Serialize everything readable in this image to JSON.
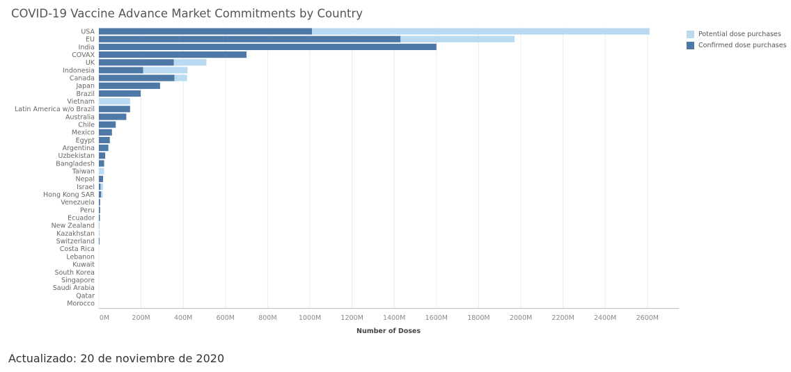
{
  "title": "COVID-19 Vaccine Advance Market Commitments by Country",
  "footnote": "Actualizado: 20 de noviembre de 2020",
  "colors": {
    "potential": "#b9daf0",
    "confirmed": "#4e79a7",
    "grid": "#ececec",
    "axis": "#bbbbbb"
  },
  "legend": [
    {
      "label": "Potential dose purchases",
      "color": "#b9daf0"
    },
    {
      "label": "Confirmed dose purchases",
      "color": "#4e79a7"
    }
  ],
  "chart_data": {
    "type": "bar",
    "orientation": "horizontal",
    "stacked": true,
    "xlabel": "Number of Doses",
    "xlim": [
      0,
      2700
    ],
    "xticks": [
      0,
      200,
      400,
      600,
      800,
      1000,
      1200,
      1400,
      1600,
      1800,
      2000,
      2200,
      2400,
      2600
    ],
    "xtick_labels": [
      "0M",
      "200M",
      "400M",
      "600M",
      "800M",
      "1000M",
      "1200M",
      "1400M",
      "1600M",
      "1800M",
      "2000M",
      "2200M",
      "2400M",
      "2600M"
    ],
    "legend_position": "top-right",
    "grid": true,
    "categories": [
      "USA",
      "EU",
      "India",
      "COVAX",
      "UK",
      "Indonesia",
      "Canada",
      "Japan",
      "Brazil",
      "Vietnam",
      "Latin America w/o Brazil",
      "Australia",
      "Chile",
      "Mexico",
      "Egypt",
      "Argentina",
      "Uzbekistan",
      "Bangladesh",
      "Taiwan",
      "Nepal",
      "Israel",
      "Hong Kong SAR",
      "Venezuela",
      "Peru",
      "Ecuador",
      "New Zealand",
      "Kazakhstan",
      "Switzerland",
      "Costa Rica",
      "Lebanon",
      "Kuwait",
      "South Korea",
      "Singapore",
      "Saudi Arabia",
      "Qatar",
      "Morocco"
    ],
    "series": [
      {
        "name": "Confirmed dose purchases",
        "values": [
          1010,
          1430,
          1600,
          700,
          355,
          210,
          358,
          290,
          198,
          0,
          148,
          130,
          80,
          62,
          52,
          45,
          30,
          25,
          0,
          20,
          8,
          10,
          6,
          6,
          5,
          1,
          0,
          3,
          0,
          0,
          0,
          0,
          0,
          0,
          0,
          0
        ]
      },
      {
        "name": "Potential dose purchases",
        "values": [
          1600,
          540,
          0,
          0,
          155,
          210,
          60,
          0,
          0,
          148,
          0,
          0,
          0,
          0,
          0,
          0,
          0,
          0,
          25,
          0,
          12,
          8,
          0,
          0,
          0,
          2,
          4,
          0,
          0,
          0,
          0,
          0,
          0,
          0,
          0,
          0
        ]
      }
    ]
  }
}
